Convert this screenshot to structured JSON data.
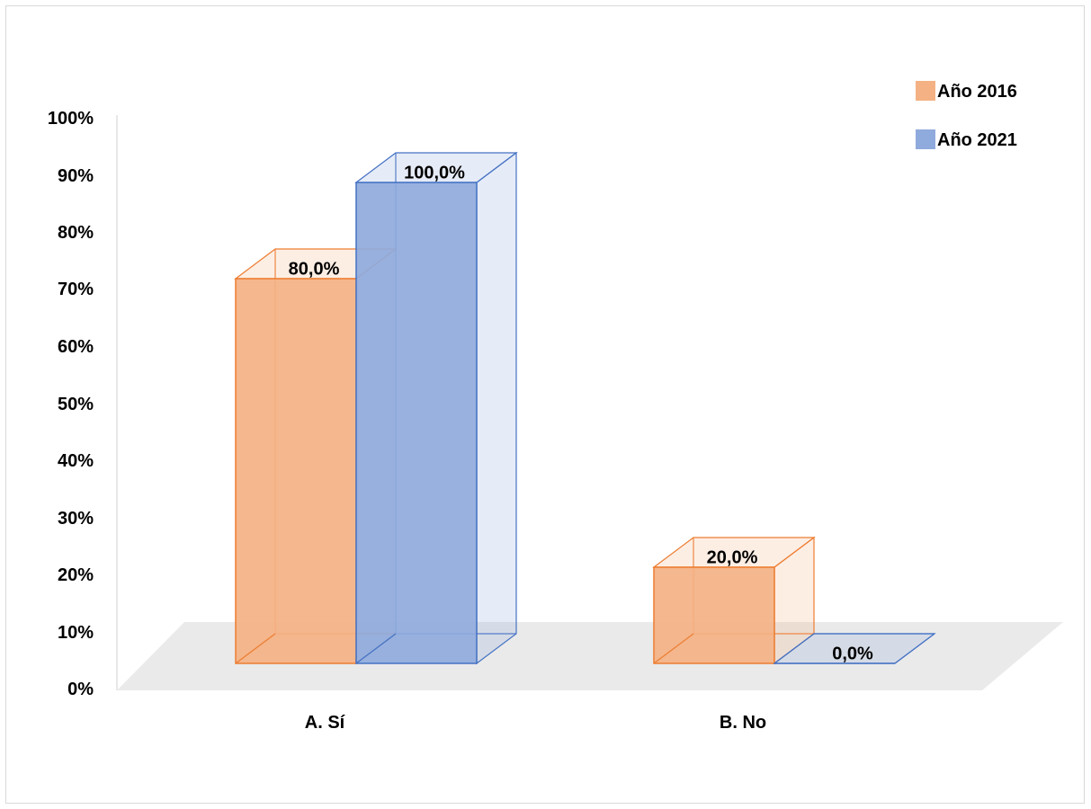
{
  "chart_data": {
    "type": "bar",
    "style": "3d-clustered-column",
    "title": "",
    "xlabel": "",
    "ylabel": "",
    "categories": [
      "A. Sí",
      "B. No"
    ],
    "series": [
      {
        "name": "Año 2016",
        "values": [
          80.0,
          20.0
        ],
        "color": "#f4b183",
        "stroke": "#ed7d31"
      },
      {
        "name": "Año 2021",
        "values": [
          100.0,
          0.0
        ],
        "color": "#8faadc",
        "stroke": "#4472c4"
      }
    ],
    "data_labels": [
      [
        "80,0%",
        "20,0%"
      ],
      [
        "100,0%",
        "0,0%"
      ]
    ],
    "yticks": [
      "0%",
      "10%",
      "20%",
      "30%",
      "40%",
      "50%",
      "60%",
      "70%",
      "80%",
      "90%",
      "100%"
    ],
    "ylim": [
      0,
      100
    ],
    "grid": false,
    "legend": "top-right"
  }
}
